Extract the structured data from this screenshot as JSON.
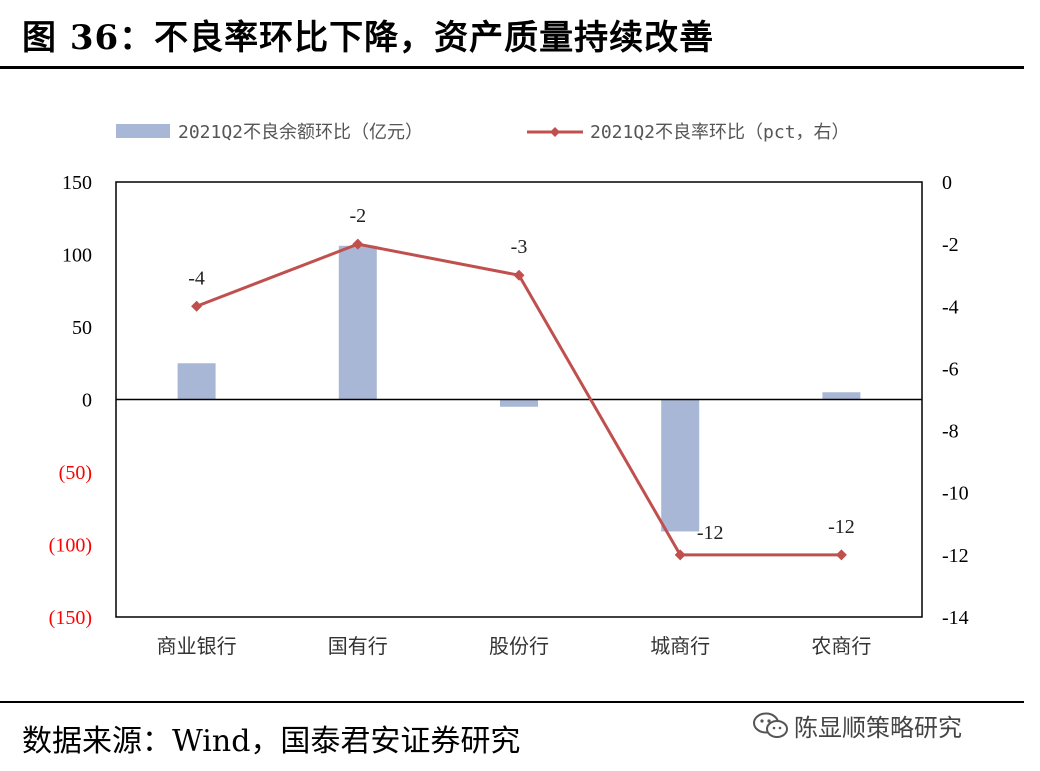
{
  "header": {
    "title": "图 36：不良率环比下降，资产质量持续改善"
  },
  "footer": {
    "source": "数据来源：Wind，国泰君安证券研究",
    "watermark": "陈显顺策略研究"
  },
  "colors": {
    "bar": "#A9B7D6",
    "line": "#C0504D",
    "negative_tick": "#FF0000",
    "axis": "#000000"
  },
  "chart_data": {
    "type": "bar",
    "categories": [
      "商业银行",
      "国有行",
      "股份行",
      "城商行",
      "农商行"
    ],
    "series": [
      {
        "name": "2021Q2不良余额环比（亿元）",
        "type": "bar",
        "axis": "left",
        "values": [
          25,
          106,
          -5,
          -91,
          5
        ]
      },
      {
        "name": "2021Q2不良率环比（pct，右）",
        "type": "line",
        "axis": "right",
        "values": [
          -4,
          -2,
          -3,
          -12,
          -12
        ]
      }
    ],
    "data_labels": [
      "-4",
      "-2",
      "-3",
      "-12",
      "-12"
    ],
    "y_left": {
      "ylim": [
        -150,
        150
      ],
      "ticks": [
        "150",
        "100",
        "50",
        "0",
        "(50)",
        "(100)",
        "(150)"
      ],
      "tick_values": [
        150,
        100,
        50,
        0,
        -50,
        -100,
        -150
      ]
    },
    "y_right": {
      "ylim": [
        -14,
        0
      ],
      "ticks": [
        "0",
        "-2",
        "-4",
        "-6",
        "-8",
        "-10",
        "-12",
        "-14"
      ],
      "tick_values": [
        0,
        -2,
        -4,
        -6,
        -8,
        -10,
        -12,
        -14
      ]
    },
    "legend": "top-center",
    "grid": false
  }
}
